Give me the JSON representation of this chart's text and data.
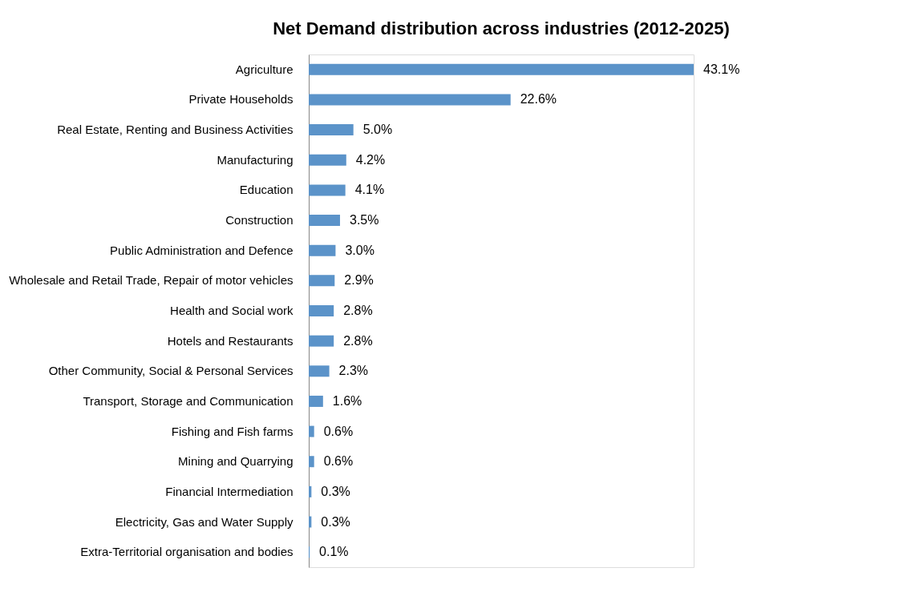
{
  "chart_data": {
    "type": "bar",
    "orientation": "horizontal",
    "title": "Net Demand distribution across industries (2012-2025)",
    "categories": [
      "Agriculture",
      "Private Households",
      "Real Estate, Renting and Business Activities",
      "Manufacturing",
      "Education",
      "Construction",
      "Public Administration and Defence",
      "Wholesale and Retail Trade, Repair of motor vehicles",
      "Health and Social work",
      "Hotels and Restaurants",
      "Other Community, Social & Personal Services",
      "Transport, Storage and Communication",
      "Fishing and Fish farms",
      "Mining and Quarrying",
      "Financial Intermediation",
      "Electricity, Gas and Water Supply",
      "Extra-Territorial organisation and bodies"
    ],
    "values": [
      43.1,
      22.6,
      5.0,
      4.2,
      4.1,
      3.5,
      3.0,
      2.9,
      2.8,
      2.8,
      2.3,
      1.6,
      0.6,
      0.6,
      0.3,
      0.3,
      0.1
    ],
    "value_labels": [
      "43.1%",
      "22.6%",
      "5.0%",
      "4.2%",
      "4.1%",
      "3.5%",
      "3.0%",
      "2.9%",
      "2.8%",
      "2.8%",
      "2.3%",
      "1.6%",
      "0.6%",
      "0.6%",
      "0.3%",
      "0.3%",
      "0.1%"
    ],
    "color": "#5b93c9",
    "tick_labels": "y",
    "grid": false
  }
}
